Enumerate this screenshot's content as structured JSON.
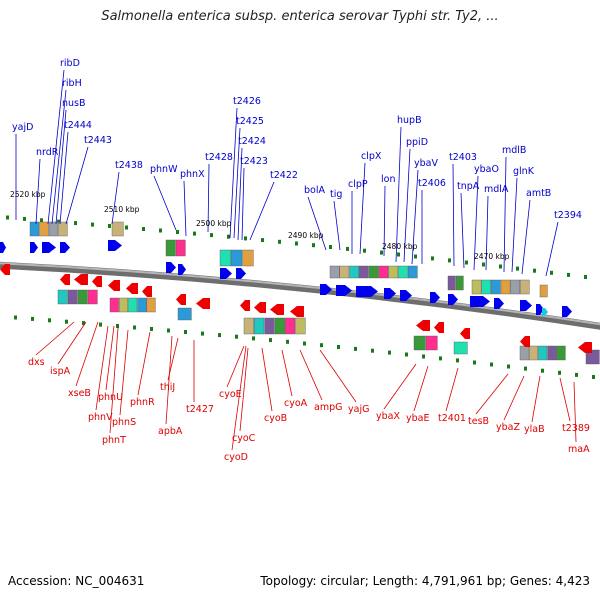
{
  "title": "Salmonella enterica subsp. enterica serovar Typhi str. Ty2, ...",
  "footer": {
    "accession": "Accession: NC_004631",
    "summary": "Topology: circular; Length: 4,791,961 bp; Genes: 4,423"
  },
  "colors": {
    "forward_label": "#0000cc",
    "reverse_label": "#dd0000",
    "forward_gene": "#0000ee",
    "reverse_gene": "#ee0000",
    "backbone": "#8a8a8a",
    "tick": "#1a7a1a"
  },
  "ruler_labels": [
    "2520 kbp",
    "2510 kbp",
    "2500 kbp",
    "2490 kbp",
    "2480 kbp",
    "2470 kbp"
  ],
  "forward_genes": [
    "yajD",
    "nrdR",
    "ribD",
    "ribH",
    "nusB",
    "t2444",
    "t2443",
    "t2438",
    "phnW",
    "phnX",
    "t2428",
    "t2426",
    "t2425",
    "t2424",
    "t2423",
    "t2422",
    "bolA",
    "tig",
    "clpP",
    "clpX",
    "lon",
    "hupB",
    "ppiD",
    "ybaV",
    "t2406",
    "t2403",
    "tnpA",
    "ybaO",
    "mdlA",
    "mdlB",
    "glnK",
    "amtB",
    "t2394"
  ],
  "reverse_genes": [
    "dxs",
    "ispA",
    "xseB",
    "phnV",
    "phnU",
    "phnT",
    "phnS",
    "phnR",
    "apbA",
    "thiJ",
    "t2427",
    "cyoE",
    "cyoD",
    "cyoC",
    "cyoB",
    "cyoA",
    "ampG",
    "yajG",
    "ybaX",
    "ybaE",
    "t2401",
    "tesB",
    "ybaZ",
    "ylaB",
    "t2389",
    "maA"
  ]
}
